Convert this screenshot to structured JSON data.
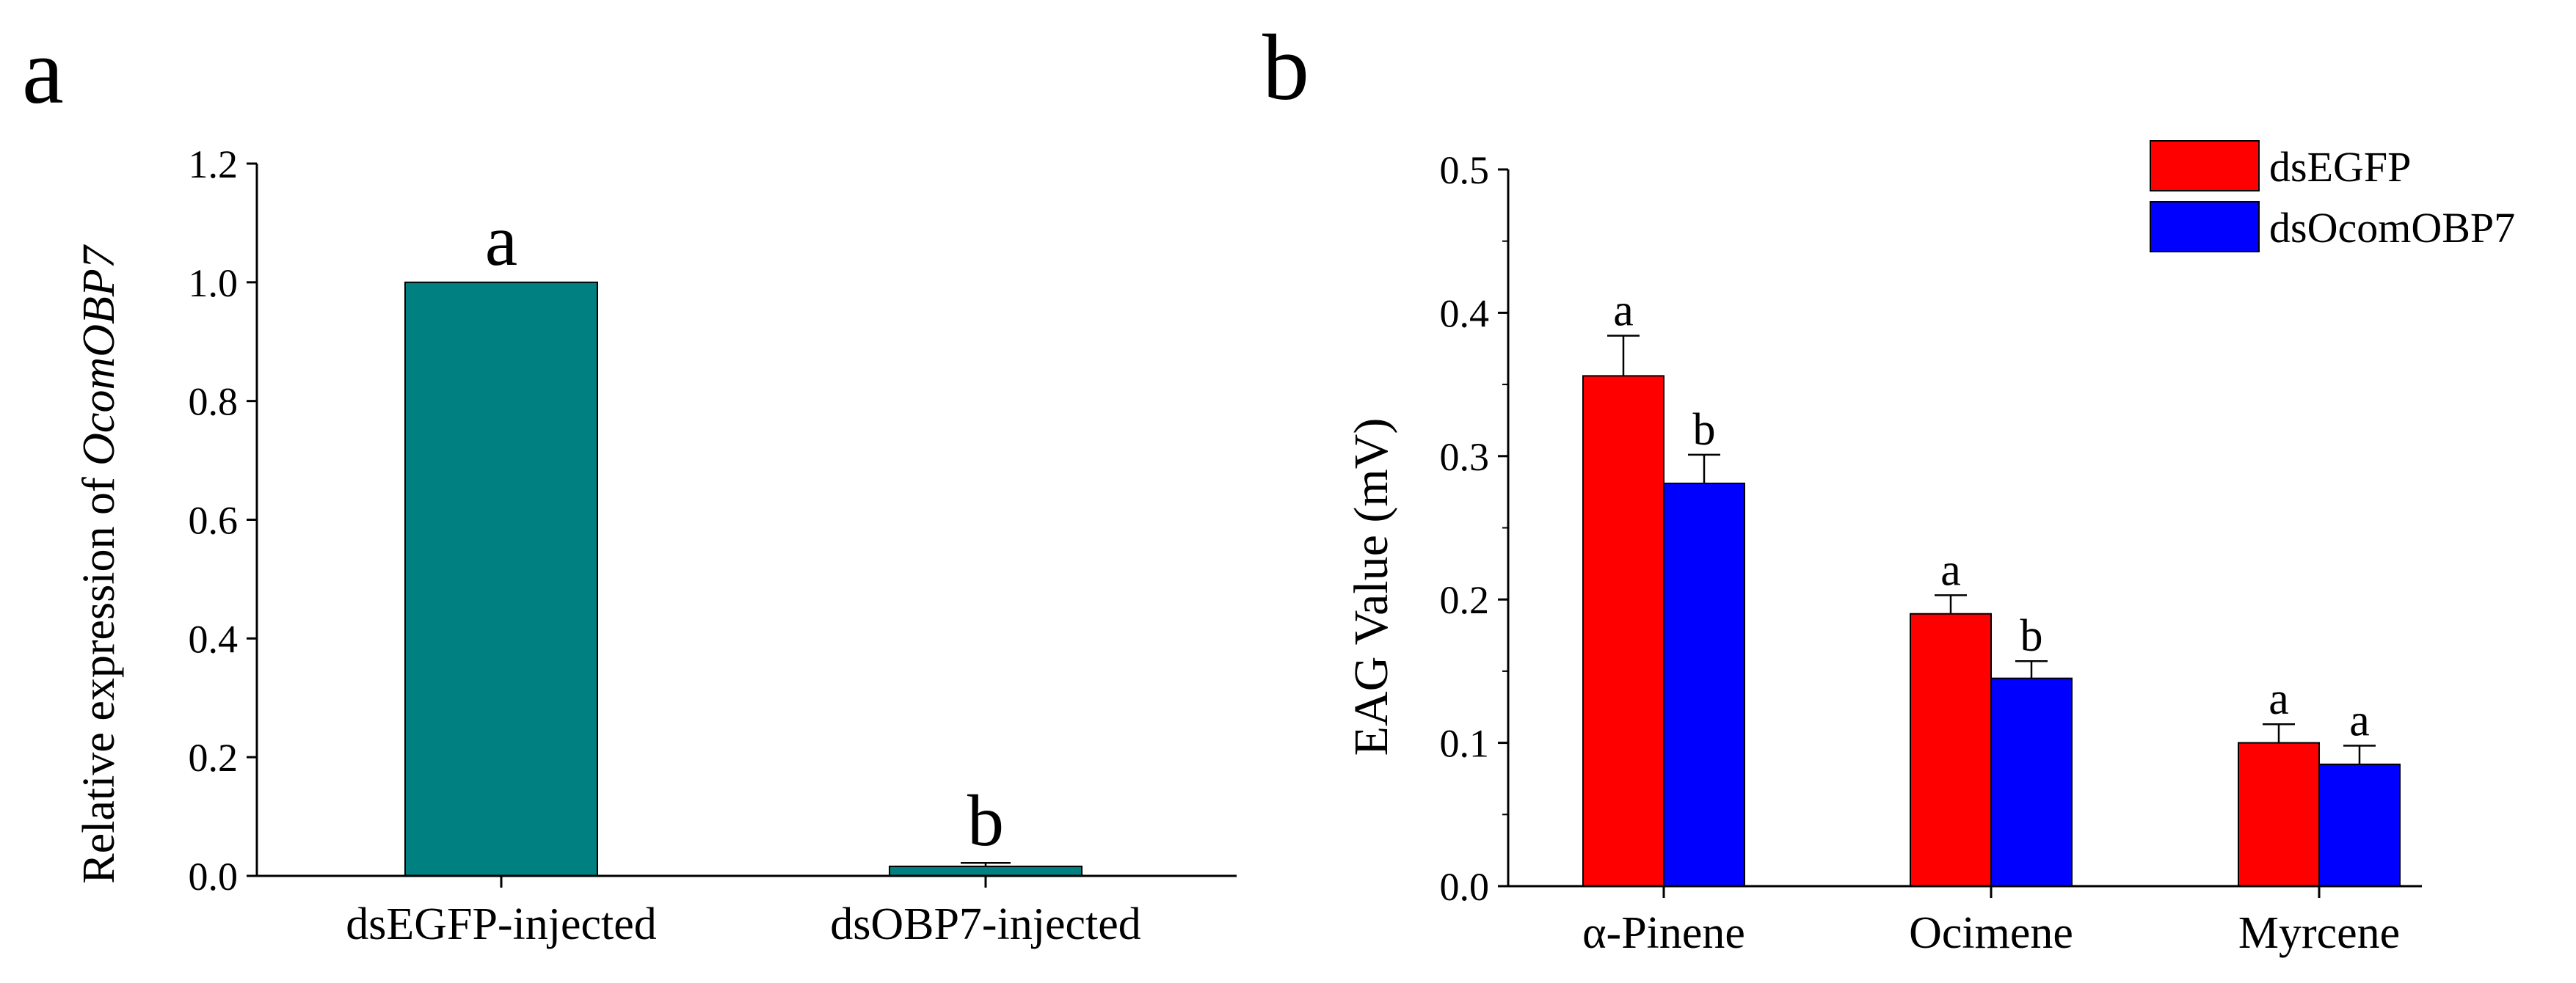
{
  "chart_data": [
    {
      "panel_label": "a",
      "type": "bar",
      "categories": [
        "dsEGFP-injected",
        "dsOBP7-injected"
      ],
      "values": [
        1.0,
        0.016
      ],
      "errors": [
        0.0,
        0.006
      ],
      "significance": [
        "a",
        "b"
      ],
      "bar_color": "#008080",
      "ylabel_prefix": "Relative expression of ",
      "ylabel_gene": "OcomOBP7",
      "xlabel": "",
      "ylim": [
        0,
        1.2
      ],
      "yticks": [
        "0.0",
        "0.2",
        "0.4",
        "0.6",
        "0.8",
        "1.0",
        "1.2"
      ],
      "grid": false
    },
    {
      "panel_label": "b",
      "type": "bar",
      "categories": [
        "α-Pinene",
        "Ocimene",
        "Myrcene"
      ],
      "series": [
        {
          "name": "dsEGFP",
          "color": "#ff0000",
          "values": [
            0.356,
            0.19,
            0.1
          ],
          "errors": [
            0.028,
            0.013,
            0.013
          ],
          "significance": [
            "a",
            "a",
            "a"
          ]
        },
        {
          "name": "dsOcomOBP7",
          "color": "#0000ff",
          "values": [
            0.281,
            0.145,
            0.085
          ],
          "errors": [
            0.02,
            0.012,
            0.013
          ],
          "significance": [
            "b",
            "b",
            "a"
          ]
        }
      ],
      "ylabel": "EAG Value (mV)",
      "xlabel": "",
      "ylim": [
        0,
        0.5
      ],
      "yticks": [
        "0.0",
        "0.1",
        "0.2",
        "0.3",
        "0.4",
        "0.5"
      ],
      "legend": "top-right",
      "grid": false
    }
  ]
}
